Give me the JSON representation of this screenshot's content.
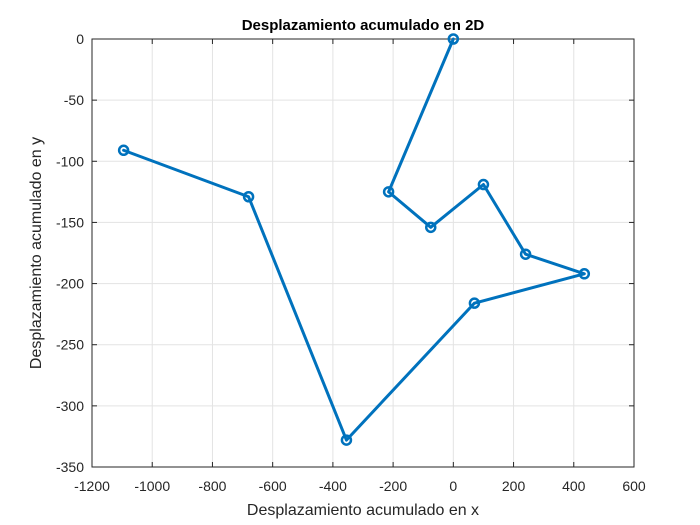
{
  "chart_data": {
    "type": "line",
    "title": "Desplazamiento acumulado en 2D",
    "xlabel": "Desplazamiento acumulado en x",
    "ylabel": "Desplazamiento acumulado en y",
    "xlim": [
      -1200,
      600
    ],
    "ylim": [
      -350,
      0
    ],
    "xticks": [
      -1200,
      -1000,
      -800,
      -600,
      -400,
      -200,
      0,
      200,
      400,
      600
    ],
    "yticks": [
      0,
      -50,
      -100,
      -150,
      -200,
      -250,
      -300,
      -350
    ],
    "grid": true,
    "marker": "circle",
    "color": "#0072BD",
    "series": [
      {
        "x": [
          0,
          -215,
          -75,
          100,
          240,
          435,
          70,
          -355,
          -680,
          -1095
        ],
        "y": [
          0,
          -125,
          -154,
          -119,
          -176,
          -192,
          -216,
          -328,
          -129,
          -91
        ]
      }
    ]
  }
}
